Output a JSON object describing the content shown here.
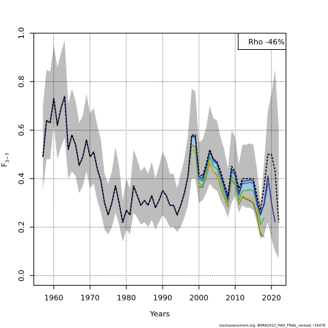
{
  "chart_data": {
    "type": "line",
    "xlabel": "Years",
    "ylabel": "F",
    "ylabel_sub": "3−7",
    "xlim": [
      1954.5,
      2024
    ],
    "ylim": [
      -0.04,
      1.0
    ],
    "xticks": [
      1960,
      1970,
      1980,
      1990,
      2000,
      2010,
      2020
    ],
    "yticks": [
      0.0,
      0.2,
      0.4,
      0.6,
      0.8,
      1.0
    ],
    "ytick_labels": [
      "0.0",
      "0.2",
      "0.4",
      "0.6",
      "0.8",
      "1.0"
    ],
    "grid": "dotted",
    "legend": {
      "position": "top-right",
      "text": "Rho -46%"
    },
    "years": [
      1957,
      1958,
      1959,
      1960,
      1961,
      1962,
      1963,
      1964,
      1965,
      1966,
      1967,
      1968,
      1969,
      1970,
      1971,
      1972,
      1973,
      1974,
      1975,
      1976,
      1977,
      1978,
      1979,
      1980,
      1981,
      1982,
      1983,
      1984,
      1985,
      1986,
      1987,
      1988,
      1989,
      1990,
      1991,
      1992,
      1993,
      1994,
      1995,
      1996,
      1997,
      1998,
      1999,
      2000,
      2001,
      2002,
      2003,
      2004,
      2005,
      2006,
      2007,
      2008,
      2009,
      2010,
      2011,
      2012,
      2013,
      2014,
      2015,
      2016,
      2017,
      2018,
      2019,
      2020,
      2021,
      2022
    ],
    "band": {
      "upper": [
        0.7,
        0.85,
        0.84,
        0.95,
        0.86,
        0.92,
        0.97,
        0.71,
        0.77,
        0.72,
        0.63,
        0.66,
        0.75,
        0.67,
        0.69,
        0.62,
        0.56,
        0.42,
        0.38,
        0.43,
        0.53,
        0.45,
        0.31,
        0.4,
        0.36,
        0.52,
        0.48,
        0.43,
        0.45,
        0.42,
        0.47,
        0.4,
        0.45,
        0.51,
        0.48,
        0.42,
        0.42,
        0.36,
        0.42,
        0.48,
        0.58,
        0.77,
        0.76,
        0.55,
        0.56,
        0.61,
        0.7,
        0.65,
        0.64,
        0.57,
        0.52,
        0.44,
        0.6,
        0.57,
        0.46,
        0.54,
        0.54,
        0.545,
        0.54,
        0.44,
        0.3,
        0.47,
        0.68,
        0.75,
        0.85,
        0.61
      ],
      "lower": [
        0.35,
        0.48,
        0.48,
        0.62,
        0.48,
        0.53,
        0.57,
        0.4,
        0.43,
        0.41,
        0.34,
        0.37,
        0.43,
        0.36,
        0.38,
        0.31,
        0.26,
        0.19,
        0.17,
        0.2,
        0.26,
        0.21,
        0.14,
        0.19,
        0.17,
        0.26,
        0.24,
        0.21,
        0.22,
        0.2,
        0.23,
        0.19,
        0.22,
        0.25,
        0.23,
        0.2,
        0.2,
        0.18,
        0.2,
        0.24,
        0.29,
        0.4,
        0.4,
        0.3,
        0.31,
        0.34,
        0.38,
        0.36,
        0.35,
        0.31,
        0.28,
        0.24,
        0.3,
        0.33,
        0.26,
        0.29,
        0.28,
        0.28,
        0.27,
        0.22,
        0.15,
        0.17,
        0.22,
        0.15,
        0.1,
        0.07
      ]
    },
    "series": [
      {
        "values": [
          0.49,
          0.64,
          0.63,
          0.73,
          0.62,
          0.69,
          0.74,
          0.52,
          0.58,
          0.54,
          0.455,
          0.49,
          0.56,
          0.49,
          0.51,
          0.44,
          0.39,
          0.3,
          0.25,
          0.3,
          0.37,
          0.3,
          0.22,
          0.27,
          0.25,
          0.37,
          0.33,
          0.29,
          0.31,
          0.29,
          0.33,
          0.28,
          0.31,
          0.35,
          0.33,
          0.29,
          0.29,
          0.25,
          0.29,
          0.34,
          0.41,
          0.58,
          0.58,
          0.42,
          0.41,
          0.46,
          0.52,
          0.48,
          0.47,
          0.43,
          0.38,
          0.33,
          0.45,
          0.43,
          0.36,
          0.4,
          0.4,
          0.4,
          0.4,
          0.33,
          0.27,
          0.37,
          0.5,
          0.5,
          0.43,
          0.22
        ]
      },
      {
        "values": [
          0.49,
          0.64,
          0.63,
          0.73,
          0.62,
          0.69,
          0.74,
          0.52,
          0.58,
          0.54,
          0.455,
          0.49,
          0.56,
          0.49,
          0.51,
          0.44,
          0.39,
          0.3,
          0.25,
          0.3,
          0.37,
          0.3,
          0.22,
          0.27,
          0.25,
          0.37,
          0.33,
          0.29,
          0.31,
          0.29,
          0.33,
          0.28,
          0.31,
          0.35,
          0.33,
          0.29,
          0.29,
          0.25,
          0.29,
          0.34,
          0.41,
          0.575,
          0.575,
          0.41,
          0.4,
          0.45,
          0.515,
          0.48,
          0.465,
          0.42,
          0.37,
          0.32,
          0.44,
          0.42,
          0.34,
          0.39,
          0.39,
          0.395,
          0.39,
          0.31,
          0.25,
          0.3,
          0.41,
          0.3,
          0.22
        ]
      },
      {
        "values": [
          0.49,
          0.64,
          0.63,
          0.73,
          0.62,
          0.69,
          0.74,
          0.52,
          0.58,
          0.54,
          0.455,
          0.49,
          0.56,
          0.49,
          0.51,
          0.44,
          0.39,
          0.3,
          0.25,
          0.3,
          0.37,
          0.3,
          0.22,
          0.27,
          0.25,
          0.37,
          0.33,
          0.29,
          0.31,
          0.29,
          0.33,
          0.28,
          0.31,
          0.35,
          0.33,
          0.29,
          0.29,
          0.25,
          0.29,
          0.34,
          0.41,
          0.57,
          0.57,
          0.4,
          0.39,
          0.44,
          0.51,
          0.47,
          0.46,
          0.41,
          0.36,
          0.31,
          0.43,
          0.41,
          0.33,
          0.38,
          0.38,
          0.385,
          0.38,
          0.29,
          0.26,
          0.29,
          0.38
        ]
      },
      {
        "values": [
          0.49,
          0.64,
          0.63,
          0.73,
          0.62,
          0.69,
          0.74,
          0.52,
          0.58,
          0.54,
          0.455,
          0.49,
          0.56,
          0.49,
          0.51,
          0.44,
          0.39,
          0.3,
          0.25,
          0.3,
          0.37,
          0.3,
          0.22,
          0.27,
          0.25,
          0.37,
          0.33,
          0.29,
          0.31,
          0.29,
          0.33,
          0.28,
          0.31,
          0.35,
          0.33,
          0.29,
          0.29,
          0.25,
          0.29,
          0.34,
          0.41,
          0.54,
          0.53,
          0.38,
          0.37,
          0.42,
          0.49,
          0.45,
          0.44,
          0.39,
          0.34,
          0.3,
          0.41,
          0.39,
          0.31,
          0.35,
          0.35,
          0.355,
          0.35,
          0.3,
          0.21,
          0.24
        ]
      },
      {
        "values": [
          0.49,
          0.64,
          0.63,
          0.73,
          0.62,
          0.69,
          0.74,
          0.52,
          0.58,
          0.54,
          0.455,
          0.49,
          0.56,
          0.49,
          0.51,
          0.44,
          0.39,
          0.3,
          0.25,
          0.3,
          0.37,
          0.3,
          0.22,
          0.27,
          0.25,
          0.37,
          0.33,
          0.29,
          0.31,
          0.29,
          0.33,
          0.28,
          0.31,
          0.35,
          0.33,
          0.29,
          0.29,
          0.25,
          0.29,
          0.34,
          0.41,
          0.52,
          0.51,
          0.37,
          0.37,
          0.41,
          0.47,
          0.43,
          0.42,
          0.37,
          0.33,
          0.29,
          0.4,
          0.38,
          0.3,
          0.33,
          0.32,
          0.32,
          0.32,
          0.27,
          0.18,
          0.17
        ]
      },
      {
        "values": [
          0.49,
          0.64,
          0.63,
          0.73,
          0.62,
          0.69,
          0.74,
          0.52,
          0.58,
          0.54,
          0.455,
          0.49,
          0.56,
          0.49,
          0.51,
          0.44,
          0.39,
          0.3,
          0.25,
          0.3,
          0.37,
          0.3,
          0.22,
          0.27,
          0.25,
          0.37,
          0.33,
          0.29,
          0.31,
          0.29,
          0.33,
          0.28,
          0.31,
          0.35,
          0.33,
          0.29,
          0.29,
          0.25,
          0.29,
          0.34,
          0.41,
          0.52,
          0.51,
          0.365,
          0.365,
          0.405,
          0.465,
          0.43,
          0.415,
          0.365,
          0.325,
          0.285,
          0.395,
          0.375,
          0.295,
          0.325,
          0.315,
          0.31,
          0.3,
          0.25,
          0.17,
          0.16
        ]
      }
    ],
    "series_colors": [
      "#000000",
      "#2b2b8c",
      "#1e66c8",
      "#4aaa55",
      "#e8b018",
      "#2f7a2f"
    ],
    "source_note": "stockassessment.org, IBPAR2022_HAD_FINAL_revised, r16478"
  }
}
